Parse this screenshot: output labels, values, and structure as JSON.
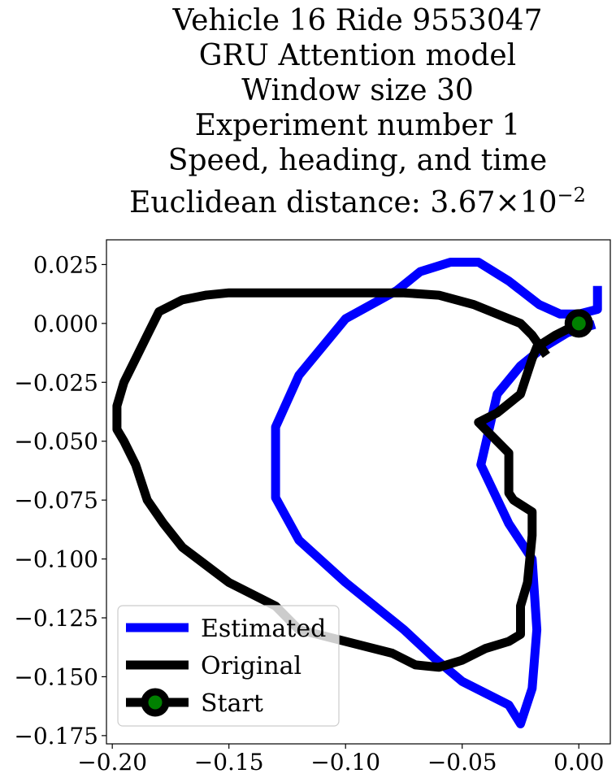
{
  "chart_data": {
    "type": "line",
    "title_lines": [
      "Vehicle 16 Ride 9553047",
      "GRU Attention model",
      "Window size 30",
      "Experiment number 1",
      "Speed, heading, and time"
    ],
    "title_metric": {
      "label": "Euclidean distance: ",
      "mantissa": "3.67",
      "times": "×",
      "base": "10",
      "exponent": "−2"
    },
    "xlabel": "",
    "ylabel": "",
    "xlim": [
      -0.2025,
      0.0135
    ],
    "ylim": [
      -0.1785,
      0.0355
    ],
    "x_ticks": [
      -0.2,
      -0.15,
      -0.1,
      -0.05,
      0.0
    ],
    "x_tick_labels": [
      "−0.20",
      "−0.15",
      "−0.10",
      "−0.05",
      "0.00"
    ],
    "y_ticks": [
      0.025,
      0.0,
      -0.025,
      -0.05,
      -0.075,
      -0.1,
      -0.125,
      -0.15,
      -0.175
    ],
    "y_tick_labels": [
      "0.025",
      "0.000",
      "−0.025",
      "−0.050",
      "−0.075",
      "−0.100",
      "−0.125",
      "−0.150",
      "−0.175"
    ],
    "grid": false,
    "legend_position": "lower-left",
    "series": [
      {
        "name": "Estimated",
        "color": "#0000ff",
        "x": [
          0.008,
          0.008,
          0.0,
          -0.008,
          -0.017,
          -0.03,
          -0.043,
          -0.055,
          -0.068,
          -0.078,
          -0.1,
          -0.12,
          -0.13,
          -0.13,
          -0.12,
          -0.1,
          -0.075,
          -0.062,
          -0.05,
          -0.03,
          -0.025,
          -0.02,
          -0.018,
          -0.02,
          -0.03,
          -0.042,
          -0.035,
          -0.025,
          -0.015,
          -0.005,
          0.005
        ],
        "y": [
          0.014,
          0.006,
          0.004,
          0.004,
          0.008,
          0.018,
          0.026,
          0.026,
          0.022,
          0.014,
          0.002,
          -0.022,
          -0.044,
          -0.074,
          -0.092,
          -0.11,
          -0.13,
          -0.142,
          -0.152,
          -0.162,
          -0.17,
          -0.155,
          -0.13,
          -0.1,
          -0.085,
          -0.06,
          -0.03,
          -0.018,
          -0.01,
          -0.004,
          -0.001
        ]
      },
      {
        "name": "Original",
        "color": "#000000",
        "x": [
          0.0,
          -0.01,
          -0.018,
          -0.02,
          -0.025,
          -0.035,
          -0.043,
          -0.04,
          -0.03,
          -0.03,
          -0.03,
          -0.028,
          -0.02,
          -0.02,
          -0.022,
          -0.025,
          -0.025,
          -0.025,
          -0.03,
          -0.04,
          -0.05,
          -0.06,
          -0.07,
          -0.08,
          -0.1,
          -0.12,
          -0.13,
          -0.15,
          -0.17,
          -0.178,
          -0.185,
          -0.19,
          -0.195,
          -0.198,
          -0.198,
          -0.195,
          -0.19,
          -0.185,
          -0.18,
          -0.17,
          -0.16,
          -0.15,
          -0.14,
          -0.13,
          -0.11,
          -0.09,
          -0.075,
          -0.06,
          -0.045,
          -0.035,
          -0.03,
          -0.025,
          -0.02,
          -0.015
        ],
        "y": [
          0.0,
          -0.005,
          -0.01,
          -0.015,
          -0.03,
          -0.038,
          -0.042,
          -0.045,
          -0.055,
          -0.065,
          -0.072,
          -0.075,
          -0.08,
          -0.09,
          -0.11,
          -0.12,
          -0.128,
          -0.132,
          -0.135,
          -0.138,
          -0.143,
          -0.146,
          -0.145,
          -0.14,
          -0.135,
          -0.13,
          -0.12,
          -0.11,
          -0.095,
          -0.085,
          -0.075,
          -0.06,
          -0.05,
          -0.045,
          -0.035,
          -0.025,
          -0.015,
          -0.005,
          0.005,
          0.01,
          0.012,
          0.013,
          0.013,
          0.013,
          0.013,
          0.013,
          0.013,
          0.012,
          0.008,
          0.004,
          0.002,
          0.0,
          -0.005,
          -0.012
        ]
      }
    ],
    "start_point": {
      "name": "Start",
      "x": 0.0,
      "y": 0.0,
      "edge_color": "#000000",
      "face_color": "#008000"
    }
  }
}
